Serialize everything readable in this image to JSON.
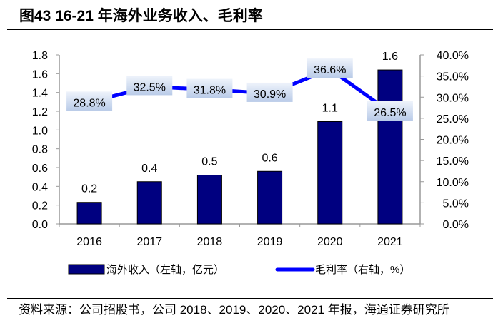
{
  "title": "图43 16-21 年海外业务收入、毛利率",
  "source": "资料来源：公司招股书，公司 2018、2019、2020、2021 年报，海通证券研究所",
  "chart_data": {
    "type": "bar+line",
    "categories": [
      "2016",
      "2017",
      "2018",
      "2019",
      "2020",
      "2021"
    ],
    "series": [
      {
        "name": "海外收入（左轴，亿元）",
        "type": "bar",
        "axis": "left",
        "color": "#000080",
        "values": [
          0.23,
          0.45,
          0.52,
          0.56,
          1.09,
          1.64
        ],
        "labels": [
          "0.2",
          "0.4",
          "0.5",
          "0.6",
          "1.1",
          "1.6"
        ]
      },
      {
        "name": "毛利率（右轴，%）",
        "type": "line",
        "axis": "right",
        "color": "#0000ff",
        "values": [
          28.8,
          32.5,
          31.8,
          30.9,
          36.6,
          26.5
        ],
        "labels": [
          "28.8%",
          "32.5%",
          "31.8%",
          "30.9%",
          "36.6%",
          "26.5%"
        ]
      }
    ],
    "left_axis": {
      "ylim": [
        0,
        1.8
      ],
      "ticks": [
        "0.0",
        "0.2",
        "0.4",
        "0.6",
        "0.8",
        "1.0",
        "1.2",
        "1.4",
        "1.6",
        "1.8"
      ]
    },
    "right_axis": {
      "ylim": [
        0,
        40
      ],
      "ticks": [
        "0.0%",
        "5.0%",
        "10.0%",
        "15.0%",
        "20.0%",
        "25.0%",
        "30.0%",
        "35.0%",
        "40.0%"
      ]
    },
    "grid": false,
    "legend": "bottom"
  }
}
